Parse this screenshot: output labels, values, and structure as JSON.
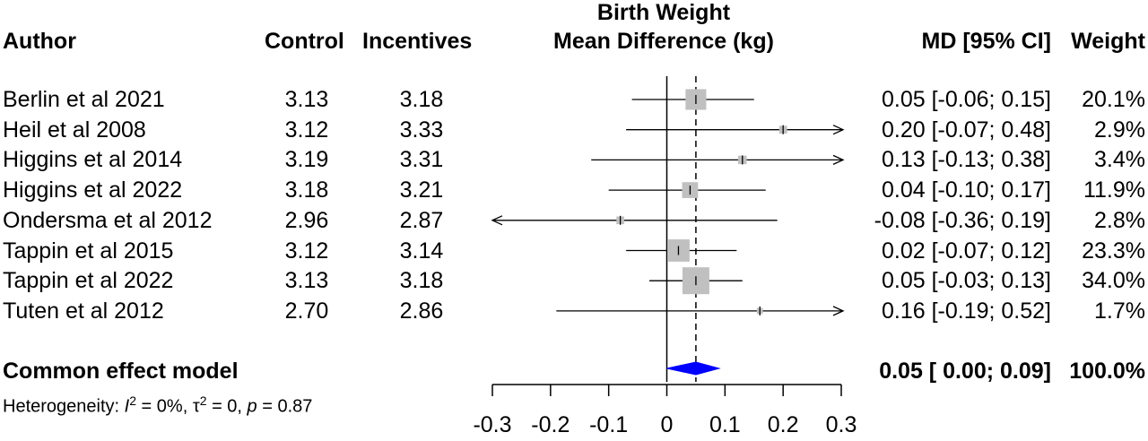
{
  "headers": {
    "author": "Author",
    "control": "Control",
    "incentives": "Incentives",
    "plot_title_line1": "Birth Weight",
    "plot_title_line2": "Mean Difference (kg)",
    "md_ci": "MD [95% CI]",
    "weight": "Weight"
  },
  "studies": [
    {
      "author": "Berlin et al 2021",
      "control": "3.13",
      "incentives": "3.18",
      "ci_text": "0.05 [-0.06; 0.15]",
      "weight_text": "20.1%"
    },
    {
      "author": "Heil et al 2008",
      "control": "3.12",
      "incentives": "3.33",
      "ci_text": "0.20 [-0.07; 0.48]",
      "weight_text": "2.9%"
    },
    {
      "author": "Higgins et al 2014",
      "control": "3.19",
      "incentives": "3.31",
      "ci_text": "0.13 [-0.13; 0.38]",
      "weight_text": "3.4%"
    },
    {
      "author": "Higgins et al 2022",
      "control": "3.18",
      "incentives": "3.21",
      "ci_text": "0.04 [-0.10; 0.17]",
      "weight_text": "11.9%"
    },
    {
      "author": "Ondersma et al 2012",
      "control": "2.96",
      "incentives": "2.87",
      "ci_text": "-0.08 [-0.36; 0.19]",
      "weight_text": "2.8%"
    },
    {
      "author": "Tappin et al 2015",
      "control": "3.12",
      "incentives": "3.14",
      "ci_text": "0.02 [-0.07; 0.12]",
      "weight_text": "23.3%"
    },
    {
      "author": "Tappin et al 2022",
      "control": "3.13",
      "incentives": "3.18",
      "ci_text": "0.05 [-0.03; 0.13]",
      "weight_text": "34.0%"
    },
    {
      "author": "Tuten et al 2012",
      "control": "2.70",
      "incentives": "2.86",
      "ci_text": "0.16 [-0.19; 0.52]",
      "weight_text": "1.7%"
    }
  ],
  "pooled": {
    "label": "Common effect model",
    "ci_text": "0.05 [ 0.00; 0.09]",
    "weight_text": "100.0%"
  },
  "heterogeneity": {
    "prefix": "Heterogeneity: ",
    "i2_symbol": "I",
    "i2_exp": "2",
    "i2_value": " = 0%, ",
    "tau_symbol": "τ",
    "tau_exp": "2",
    "tau_value": " = 0, ",
    "p_symbol": "p",
    "p_value": " = 0.87"
  },
  "chart_data": {
    "type": "forest",
    "xlim": [
      -0.3,
      0.3
    ],
    "ticks": [
      -0.3,
      -0.2,
      -0.1,
      0,
      0.1,
      0.2,
      0.3
    ],
    "tick_labels": [
      "-0.3",
      "-0.2",
      "-0.1",
      "0",
      "0.1",
      "0.2",
      "0.3"
    ],
    "estimates": [
      {
        "md": 0.05,
        "lower": -0.06,
        "upper": 0.15,
        "weight": 20.1
      },
      {
        "md": 0.2,
        "lower": -0.07,
        "upper": 0.48,
        "weight": 2.9
      },
      {
        "md": 0.13,
        "lower": -0.13,
        "upper": 0.38,
        "weight": 3.4
      },
      {
        "md": 0.04,
        "lower": -0.1,
        "upper": 0.17,
        "weight": 11.9
      },
      {
        "md": -0.08,
        "lower": -0.36,
        "upper": 0.19,
        "weight": 2.8
      },
      {
        "md": 0.02,
        "lower": -0.07,
        "upper": 0.12,
        "weight": 23.3
      },
      {
        "md": 0.05,
        "lower": -0.03,
        "upper": 0.13,
        "weight": 34.0
      },
      {
        "md": 0.16,
        "lower": -0.19,
        "upper": 0.52,
        "weight": 1.7
      }
    ],
    "pooled": {
      "md": 0.05,
      "lower": 0.0,
      "upper": 0.09
    },
    "colors": {
      "box": "#c0c0c0",
      "diamond": "#0000ff",
      "line": "#000000"
    }
  }
}
